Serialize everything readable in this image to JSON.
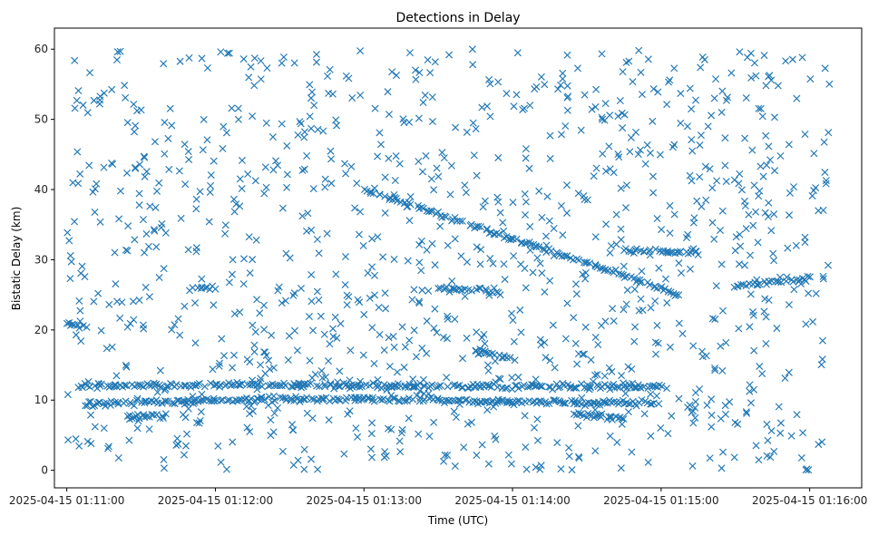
{
  "chart_data": {
    "type": "scatter",
    "title": "Detections in Delay",
    "xlabel": "Time (UTC)",
    "ylabel": "Bistatic Delay (km)",
    "marker": "x",
    "color": "#1f77b4",
    "grid": false,
    "xlim": [
      "2025-04-15 01:10:55",
      "2025-04-15 01:16:21"
    ],
    "ylim": [
      -2.5,
      63
    ],
    "x_ticks": [
      "2025-04-15 01:11:00",
      "2025-04-15 01:12:00",
      "2025-04-15 01:13:00",
      "2025-04-15 01:14:00",
      "2025-04-15 01:15:00",
      "2025-04-15 01:16:00"
    ],
    "y_ticks": [
      "0",
      "10",
      "20",
      "30",
      "40",
      "50",
      "60"
    ],
    "x_range_observed": [
      "2025-04-15 01:11:00",
      "2025-04-15 01:16:08"
    ],
    "tracks": [
      {
        "x": [
          "2025-04-15 01:13:00",
          "2025-04-15 01:15:00",
          "2025-04-15 01:15:08"
        ],
        "y": [
          40.0,
          26.0,
          24.8
        ]
      },
      {
        "x": [
          "2025-04-15 01:11:05",
          "2025-04-15 01:12:10",
          "2025-04-15 01:13:20",
          "2025-04-15 01:14:30",
          "2025-04-15 01:15:00"
        ],
        "y": [
          12.0,
          12.2,
          12.0,
          11.9,
          12.0
        ]
      },
      {
        "x": [
          "2025-04-15 01:11:05",
          "2025-04-15 01:12:00",
          "2025-04-15 01:13:00",
          "2025-04-15 01:14:00",
          "2025-04-15 01:15:00"
        ],
        "y": [
          9.4,
          10.0,
          10.2,
          9.8,
          9.5
        ]
      },
      {
        "x": [
          "2025-04-15 01:11:25",
          "2025-04-15 01:11:40"
        ],
        "y": [
          7.7,
          7.7
        ]
      },
      {
        "x": [
          "2025-04-15 01:13:45",
          "2025-04-15 01:14:00"
        ],
        "y": [
          17.0,
          16.0
        ]
      },
      {
        "x": [
          "2025-04-15 01:15:30",
          "2025-04-15 01:16:00"
        ],
        "y": [
          26.3,
          27.3
        ]
      },
      {
        "x": [
          "2025-04-15 01:11:00",
          "2025-04-15 01:11:08"
        ],
        "y": [
          20.7,
          20.7
        ]
      },
      {
        "x": [
          "2025-04-15 01:11:50",
          "2025-04-15 01:12:00"
        ],
        "y": [
          26.0,
          26.0
        ]
      },
      {
        "x": [
          "2025-04-15 01:13:30",
          "2025-04-15 01:13:55"
        ],
        "y": [
          26.0,
          25.5
        ]
      },
      {
        "x": [
          "2025-04-15 01:14:45",
          "2025-04-15 01:15:15"
        ],
        "y": [
          31.3,
          31.0
        ]
      },
      {
        "x": [
          "2025-04-15 01:14:25",
          "2025-04-15 01:14:45"
        ],
        "y": [
          8.0,
          7.5
        ]
      }
    ],
    "noise": {
      "count": 1100,
      "y_range": [
        0,
        60
      ]
    }
  }
}
